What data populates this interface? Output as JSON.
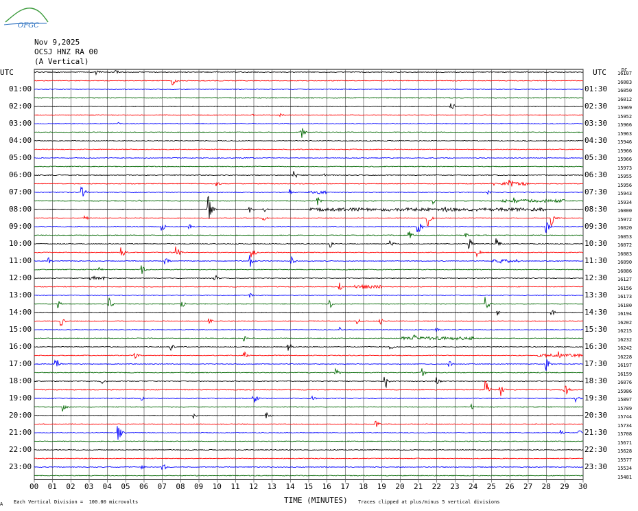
{
  "header": {
    "date": "Nov 9,2025",
    "station": "OCSJ HNZ RA 00",
    "component": "(A Vertical)",
    "logo_text": "OFGC"
  },
  "colors": [
    "#000000",
    "#ff0000",
    "#0000ff",
    "#006600"
  ],
  "chart_data": {
    "type": "line",
    "xlabel": "TIME (MINUTES)",
    "xlim": [
      0,
      30
    ],
    "x_ticks": [
      "00",
      "01",
      "02",
      "03",
      "04",
      "05",
      "06",
      "07",
      "08",
      "09",
      "10",
      "11",
      "12",
      "13",
      "14",
      "15",
      "16",
      "17",
      "18",
      "19",
      "20",
      "21",
      "22",
      "23",
      "24",
      "25",
      "26",
      "27",
      "28",
      "29",
      "30"
    ],
    "left_axis_title": "UTC",
    "right_axis_title": "UTC",
    "left_labels": [
      "01:00",
      "02:00",
      "03:00",
      "04:00",
      "05:00",
      "06:00",
      "07:00",
      "08:00",
      "09:00",
      "10:00",
      "11:00",
      "12:00",
      "13:00",
      "14:00",
      "15:00",
      "16:00",
      "17:00",
      "18:00",
      "19:00",
      "20:00",
      "21:00",
      "22:00",
      "23:00"
    ],
    "right_labels": [
      "01:30",
      "02:30",
      "03:30",
      "04:30",
      "05:30",
      "06:30",
      "07:30",
      "08:30",
      "09:30",
      "10:30",
      "11:30",
      "12:30",
      "13:30",
      "14:30",
      "15:30",
      "16:30",
      "17:30",
      "18:30",
      "19:30",
      "20:30",
      "21:30",
      "22:30",
      "23:30"
    ],
    "right_header": "DC",
    "trace_counts": [
      "16107",
      "16083",
      "16050",
      "16012",
      "15969",
      "15952",
      "15966",
      "15963",
      "15946",
      "15966",
      "15966",
      "15973",
      "15955",
      "15956",
      "15943",
      "15934",
      "16000",
      "15972",
      "16020",
      "16053",
      "16072",
      "16083",
      "16090",
      "16086",
      "16127",
      "16156",
      "16173",
      "16180",
      "16194",
      "16202",
      "16215",
      "16232",
      "16242",
      "16228",
      "16197",
      "16159",
      "16076",
      "15986",
      "15897",
      "15789",
      "15744",
      "15734",
      "15708",
      "15671",
      "15628",
      "15577",
      "15534",
      "15481"
    ],
    "events": [
      {
        "trace": 0,
        "minute": 3.4,
        "amp": 6
      },
      {
        "trace": 0,
        "minute": 4.5,
        "amp": 3
      },
      {
        "trace": 1,
        "minute": 7.6,
        "amp": 8
      },
      {
        "trace": 4,
        "minute": 22.8,
        "amp": 9
      },
      {
        "trace": 5,
        "minute": 13.5,
        "amp": 3
      },
      {
        "trace": 5,
        "minute": 12.0,
        "amp": 2
      },
      {
        "trace": 6,
        "minute": 4.6,
        "amp": 2
      },
      {
        "trace": 7,
        "minute": 14.6,
        "amp": 10
      },
      {
        "trace": 12,
        "minute": 14.2,
        "amp": 8
      },
      {
        "trace": 12,
        "minute": 15.8,
        "amp": 3
      },
      {
        "trace": 13,
        "minute": 26.0,
        "amp": 10
      },
      {
        "trace": 13,
        "minute": 25.0,
        "amp": 6
      },
      {
        "trace": 13,
        "minute": 10.0,
        "amp": 4
      },
      {
        "trace": 14,
        "minute": 2.6,
        "amp": 12
      },
      {
        "trace": 14,
        "minute": 14.0,
        "amp": 5
      },
      {
        "trace": 14,
        "minute": 24.8,
        "amp": 4
      },
      {
        "trace": 15,
        "minute": 15.5,
        "amp": 7
      },
      {
        "trace": 15,
        "minute": 21.8,
        "amp": 6
      },
      {
        "trace": 15,
        "minute": 26.2,
        "amp": 8
      },
      {
        "trace": 15,
        "minute": 5.8,
        "amp": 3
      },
      {
        "trace": 16,
        "minute": 9.5,
        "amp": 26
      },
      {
        "trace": 16,
        "minute": 12.5,
        "amp": 7
      },
      {
        "trace": 16,
        "minute": 22.5,
        "amp": 6
      },
      {
        "trace": 16,
        "minute": 11.8,
        "amp": 5
      },
      {
        "trace": 17,
        "minute": 2.8,
        "amp": 4
      },
      {
        "trace": 17,
        "minute": 12.5,
        "amp": 6
      },
      {
        "trace": 17,
        "minute": 21.5,
        "amp": 14
      },
      {
        "trace": 17,
        "minute": 28.3,
        "amp": 14
      },
      {
        "trace": 18,
        "minute": 7.0,
        "amp": 6
      },
      {
        "trace": 18,
        "minute": 8.5,
        "amp": 4
      },
      {
        "trace": 18,
        "minute": 21.0,
        "amp": 12
      },
      {
        "trace": 18,
        "minute": 28.0,
        "amp": 10
      },
      {
        "trace": 19,
        "minute": 20.5,
        "amp": 8
      },
      {
        "trace": 19,
        "minute": 23.6,
        "amp": 4
      },
      {
        "trace": 20,
        "minute": 16.2,
        "amp": 6
      },
      {
        "trace": 20,
        "minute": 23.8,
        "amp": 8
      },
      {
        "trace": 20,
        "minute": 25.3,
        "amp": 8
      },
      {
        "trace": 20,
        "minute": 19.5,
        "amp": 5
      },
      {
        "trace": 21,
        "minute": 4.8,
        "amp": 8
      },
      {
        "trace": 21,
        "minute": 7.8,
        "amp": 10
      },
      {
        "trace": 21,
        "minute": 11.9,
        "amp": 14
      },
      {
        "trace": 21,
        "minute": 24.2,
        "amp": 7
      },
      {
        "trace": 22,
        "minute": 0.8,
        "amp": 6
      },
      {
        "trace": 22,
        "minute": 7.2,
        "amp": 6
      },
      {
        "trace": 22,
        "minute": 11.8,
        "amp": 10
      },
      {
        "trace": 22,
        "minute": 14.1,
        "amp": 6
      },
      {
        "trace": 22,
        "minute": 25.5,
        "amp": 3
      },
      {
        "trace": 23,
        "minute": 5.9,
        "amp": 7
      },
      {
        "trace": 23,
        "minute": 3.6,
        "amp": 3
      },
      {
        "trace": 24,
        "minute": 3.3,
        "amp": 3
      },
      {
        "trace": 24,
        "minute": 9.9,
        "amp": 6
      },
      {
        "trace": 25,
        "minute": 16.7,
        "amp": 6
      },
      {
        "trace": 25,
        "minute": 18.0,
        "amp": 3
      },
      {
        "trace": 26,
        "minute": 11.8,
        "amp": 4
      },
      {
        "trace": 27,
        "minute": 1.3,
        "amp": 6
      },
      {
        "trace": 27,
        "minute": 4.1,
        "amp": 9
      },
      {
        "trace": 27,
        "minute": 8.1,
        "amp": 5
      },
      {
        "trace": 27,
        "minute": 16.2,
        "amp": 5
      },
      {
        "trace": 27,
        "minute": 24.7,
        "amp": 12
      },
      {
        "trace": 28,
        "minute": 25.3,
        "amp": 5
      },
      {
        "trace": 28,
        "minute": 28.3,
        "amp": 6
      },
      {
        "trace": 29,
        "minute": 1.5,
        "amp": 7
      },
      {
        "trace": 29,
        "minute": 9.6,
        "amp": 4
      },
      {
        "trace": 29,
        "minute": 18.9,
        "amp": 6
      },
      {
        "trace": 29,
        "minute": 17.7,
        "amp": 4
      },
      {
        "trace": 30,
        "minute": 16.7,
        "amp": 4
      },
      {
        "trace": 30,
        "minute": 22.0,
        "amp": 3
      },
      {
        "trace": 31,
        "minute": 11.5,
        "amp": 4
      },
      {
        "trace": 31,
        "minute": 20.8,
        "amp": 5
      },
      {
        "trace": 32,
        "minute": 7.5,
        "amp": 5
      },
      {
        "trace": 32,
        "minute": 13.9,
        "amp": 8
      },
      {
        "trace": 32,
        "minute": 19.5,
        "amp": 4
      },
      {
        "trace": 33,
        "minute": 5.5,
        "amp": 6
      },
      {
        "trace": 33,
        "minute": 11.5,
        "amp": 6
      },
      {
        "trace": 33,
        "minute": 28.7,
        "amp": 6
      },
      {
        "trace": 34,
        "minute": 1.2,
        "amp": 10
      },
      {
        "trace": 34,
        "minute": 28.0,
        "amp": 10
      },
      {
        "trace": 34,
        "minute": 22.7,
        "amp": 5
      },
      {
        "trace": 35,
        "minute": 16.5,
        "amp": 6
      },
      {
        "trace": 35,
        "minute": 21.2,
        "amp": 7
      },
      {
        "trace": 36,
        "minute": 19.2,
        "amp": 12
      },
      {
        "trace": 36,
        "minute": 22.0,
        "amp": 7
      },
      {
        "trace": 36,
        "minute": 3.7,
        "amp": 5
      },
      {
        "trace": 37,
        "minute": 24.7,
        "amp": 14
      },
      {
        "trace": 37,
        "minute": 25.5,
        "amp": 12
      },
      {
        "trace": 37,
        "minute": 29.0,
        "amp": 12
      },
      {
        "trace": 38,
        "minute": 12.0,
        "amp": 10
      },
      {
        "trace": 38,
        "minute": 15.2,
        "amp": 4
      },
      {
        "trace": 38,
        "minute": 5.9,
        "amp": 3
      },
      {
        "trace": 38,
        "minute": 29.6,
        "amp": 6
      },
      {
        "trace": 39,
        "minute": 1.6,
        "amp": 7
      },
      {
        "trace": 39,
        "minute": 23.9,
        "amp": 4
      },
      {
        "trace": 40,
        "minute": 8.7,
        "amp": 4
      },
      {
        "trace": 40,
        "minute": 12.7,
        "amp": 6
      },
      {
        "trace": 41,
        "minute": 18.7,
        "amp": 5
      },
      {
        "trace": 42,
        "minute": 4.6,
        "amp": 18
      },
      {
        "trace": 42,
        "minute": 28.8,
        "amp": 4
      },
      {
        "trace": 42,
        "minute": 29.8,
        "amp": 4
      },
      {
        "trace": 46,
        "minute": 7.0,
        "amp": 8
      },
      {
        "trace": 46,
        "minute": 5.9,
        "amp": 3
      }
    ],
    "noisy_segments": [
      {
        "trace": 16,
        "from": 15.0,
        "to": 28.0
      },
      {
        "trace": 15,
        "from": 25.5,
        "to": 29.0
      },
      {
        "trace": 22,
        "from": 25.0,
        "to": 26.5
      },
      {
        "trace": 25,
        "from": 17.5,
        "to": 19.0
      },
      {
        "trace": 24,
        "from": 3.0,
        "to": 4.0
      },
      {
        "trace": 31,
        "from": 20.0,
        "to": 24.0
      },
      {
        "trace": 33,
        "from": 27.5,
        "to": 30.0
      },
      {
        "trace": 13,
        "from": 25.5,
        "to": 27.0
      },
      {
        "trace": 14,
        "from": 15.0,
        "to": 16.0
      }
    ]
  },
  "footer": {
    "scale_note": "Each Vertical Division =  100.00 microvolts",
    "clip_note": "Traces clipped at plus/minus 5 vertical divisions",
    "corner_mark": "A"
  }
}
